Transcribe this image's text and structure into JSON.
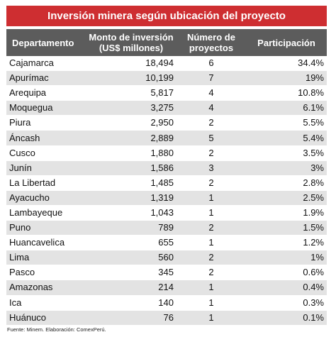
{
  "title": "Inversión minera según ubicación del proyecto",
  "headers": {
    "departamento": "Departamento",
    "monto_line1": "Monto de inversión",
    "monto_line2": "(US$ millones)",
    "numero_line1": "Número de",
    "numero_line2": "proyectos",
    "participacion": "Participación"
  },
  "rows": [
    {
      "departamento": "Cajamarca",
      "monto": "18,494",
      "numero": "6",
      "participacion": "34.4%"
    },
    {
      "departamento": "Apurímac",
      "monto": "10,199",
      "numero": "7",
      "participacion": "19%"
    },
    {
      "departamento": "Arequipa",
      "monto": "5,817",
      "numero": "4",
      "participacion": "10.8%"
    },
    {
      "departamento": "Moquegua",
      "monto": "3,275",
      "numero": "4",
      "participacion": "6.1%"
    },
    {
      "departamento": "Piura",
      "monto": "2,950",
      "numero": "2",
      "participacion": "5.5%"
    },
    {
      "departamento": "Áncash",
      "monto": "2,889",
      "numero": "5",
      "participacion": "5.4%"
    },
    {
      "departamento": "Cusco",
      "monto": "1,880",
      "numero": "2",
      "participacion": "3.5%"
    },
    {
      "departamento": "Junín",
      "monto": "1,586",
      "numero": "3",
      "participacion": "3%"
    },
    {
      "departamento": "La Libertad",
      "monto": "1,485",
      "numero": "2",
      "participacion": "2.8%"
    },
    {
      "departamento": "Ayacucho",
      "monto": "1,319",
      "numero": "1",
      "participacion": "2.5%"
    },
    {
      "departamento": "Lambayeque",
      "monto": "1,043",
      "numero": "1",
      "participacion": "1.9%"
    },
    {
      "departamento": "Puno",
      "monto": "789",
      "numero": "2",
      "participacion": "1.5%"
    },
    {
      "departamento": "Huancavelica",
      "monto": "655",
      "numero": "1",
      "participacion": "1.2%"
    },
    {
      "departamento": "Lima",
      "monto": "560",
      "numero": "2",
      "participacion": "1%"
    },
    {
      "departamento": "Pasco",
      "monto": "345",
      "numero": "2",
      "participacion": "0.6%"
    },
    {
      "departamento": "Amazonas",
      "monto": "214",
      "numero": "1",
      "participacion": "0.4%"
    },
    {
      "departamento": "Ica",
      "monto": "140",
      "numero": "1",
      "participacion": "0.3%"
    },
    {
      "departamento": "Huánuco",
      "monto": "76",
      "numero": "1",
      "participacion": "0.1%"
    }
  ],
  "source": "Fuente: Minem. Elaboración: ComexPerú.",
  "colors": {
    "title_background": "#ce2e31",
    "header_background": "#5c5c5c",
    "stripe_row": "#e3e3e3"
  }
}
